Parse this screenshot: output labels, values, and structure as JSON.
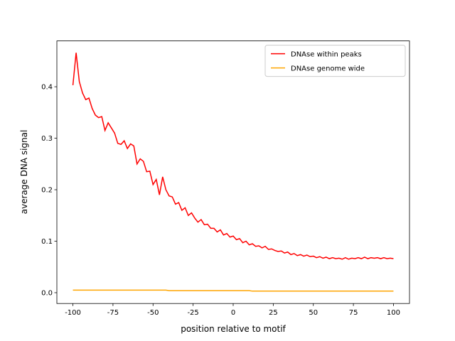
{
  "chart_data": {
    "type": "line",
    "xlabel": "position relative to motif",
    "ylabel": "average DNA signal",
    "x": [
      -100,
      -98,
      -96,
      -94,
      -92,
      -90,
      -88,
      -86,
      -84,
      -82,
      -80,
      -78,
      -76,
      -74,
      -72,
      -70,
      -68,
      -66,
      -64,
      -62,
      -60,
      -58,
      -56,
      -54,
      -52,
      -50,
      -48,
      -46,
      -44,
      -42,
      -40,
      -38,
      -36,
      -34,
      -32,
      -30,
      -28,
      -26,
      -24,
      -22,
      -20,
      -18,
      -16,
      -14,
      -12,
      -10,
      -8,
      -6,
      -4,
      -2,
      0,
      2,
      4,
      6,
      8,
      10,
      12,
      14,
      16,
      18,
      20,
      22,
      24,
      26,
      28,
      30,
      32,
      34,
      36,
      38,
      40,
      42,
      44,
      46,
      48,
      50,
      52,
      54,
      56,
      58,
      60,
      62,
      64,
      66,
      68,
      70,
      72,
      74,
      76,
      78,
      80,
      82,
      84,
      86,
      88,
      90,
      92,
      94,
      96,
      98,
      100
    ],
    "series": [
      {
        "name": "DNAse within peaks",
        "color": "#ff0000",
        "values": [
          0.403,
          0.466,
          0.41,
          0.388,
          0.375,
          0.378,
          0.358,
          0.345,
          0.34,
          0.342,
          0.315,
          0.33,
          0.32,
          0.31,
          0.29,
          0.288,
          0.295,
          0.28,
          0.289,
          0.285,
          0.25,
          0.26,
          0.255,
          0.235,
          0.236,
          0.21,
          0.22,
          0.19,
          0.225,
          0.2,
          0.188,
          0.186,
          0.172,
          0.175,
          0.16,
          0.165,
          0.15,
          0.155,
          0.145,
          0.137,
          0.142,
          0.132,
          0.133,
          0.125,
          0.125,
          0.118,
          0.122,
          0.112,
          0.115,
          0.108,
          0.11,
          0.103,
          0.105,
          0.097,
          0.1,
          0.093,
          0.095,
          0.09,
          0.091,
          0.087,
          0.09,
          0.084,
          0.085,
          0.082,
          0.08,
          0.081,
          0.077,
          0.079,
          0.074,
          0.076,
          0.072,
          0.074,
          0.071,
          0.073,
          0.07,
          0.071,
          0.068,
          0.07,
          0.067,
          0.069,
          0.066,
          0.068,
          0.066,
          0.067,
          0.065,
          0.068,
          0.065,
          0.067,
          0.066,
          0.068,
          0.066,
          0.069,
          0.066,
          0.068,
          0.067,
          0.068,
          0.066,
          0.068,
          0.066,
          0.067,
          0.066
        ]
      },
      {
        "name": "DNAse genome wide",
        "color": "#ffa500",
        "values": [
          0.005,
          0.005,
          0.005,
          0.005,
          0.005,
          0.005,
          0.005,
          0.005,
          0.005,
          0.005,
          0.005,
          0.005,
          0.005,
          0.005,
          0.005,
          0.005,
          0.005,
          0.005,
          0.005,
          0.005,
          0.005,
          0.005,
          0.005,
          0.005,
          0.005,
          0.005,
          0.005,
          0.005,
          0.005,
          0.005,
          0.004,
          0.004,
          0.004,
          0.004,
          0.004,
          0.004,
          0.004,
          0.004,
          0.004,
          0.004,
          0.004,
          0.004,
          0.004,
          0.004,
          0.004,
          0.004,
          0.004,
          0.004,
          0.004,
          0.004,
          0.004,
          0.004,
          0.004,
          0.004,
          0.004,
          0.004,
          0.003,
          0.003,
          0.003,
          0.003,
          0.003,
          0.003,
          0.003,
          0.003,
          0.003,
          0.003,
          0.003,
          0.003,
          0.003,
          0.003,
          0.003,
          0.003,
          0.003,
          0.003,
          0.003,
          0.003,
          0.003,
          0.003,
          0.003,
          0.003,
          0.003,
          0.003,
          0.003,
          0.003,
          0.003,
          0.003,
          0.003,
          0.003,
          0.003,
          0.003,
          0.003,
          0.003,
          0.003,
          0.003,
          0.003,
          0.003,
          0.003,
          0.003,
          0.003,
          0.003,
          0.003
        ]
      }
    ],
    "xlim": [
      -110,
      110
    ],
    "xticks": [
      -100,
      -75,
      -50,
      -25,
      0,
      25,
      50,
      75,
      100
    ],
    "ylim": [
      -0.021,
      0.489
    ],
    "yticks": [
      {
        "value": 0,
        "label": "0.0"
      },
      0.1,
      0.2,
      0.3,
      0.4
    ],
    "legend": "upper right",
    "grid": false
  }
}
